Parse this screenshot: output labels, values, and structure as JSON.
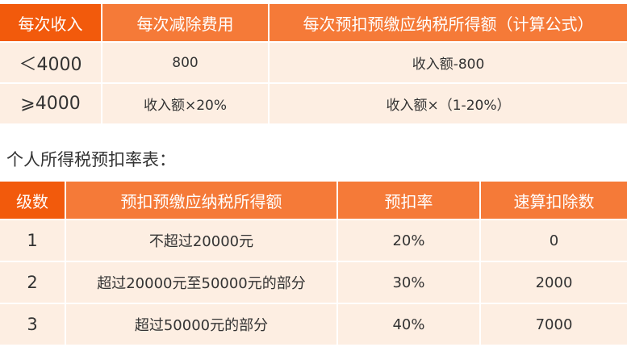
{
  "table1": {
    "headers": [
      "每次收入",
      "每次减除费用",
      "每次预扣预缴应纳税所得额（计算公式）"
    ],
    "rows": [
      [
        "＜4000",
        "800",
        "收入额-800"
      ],
      [
        "⩾4000",
        "收入额×20%",
        "收入额×（1-20%）"
      ]
    ]
  },
  "caption": "个人所得税预扣率表：",
  "table2": {
    "headers": [
      "级数",
      "预扣预缴应纳税所得额",
      "预扣率",
      "速算扣除数"
    ],
    "rows": [
      [
        "1",
        "不超过20000元",
        "20%",
        "0"
      ],
      [
        "2",
        "超过20000元至50000元的部分",
        "30%",
        "2000"
      ],
      [
        "3",
        "超过50000元的部分",
        "40%",
        "7000"
      ]
    ]
  },
  "colors": {
    "header_primary": "#f25a0c",
    "header": "#f57a38",
    "body": "#fdeee2"
  }
}
